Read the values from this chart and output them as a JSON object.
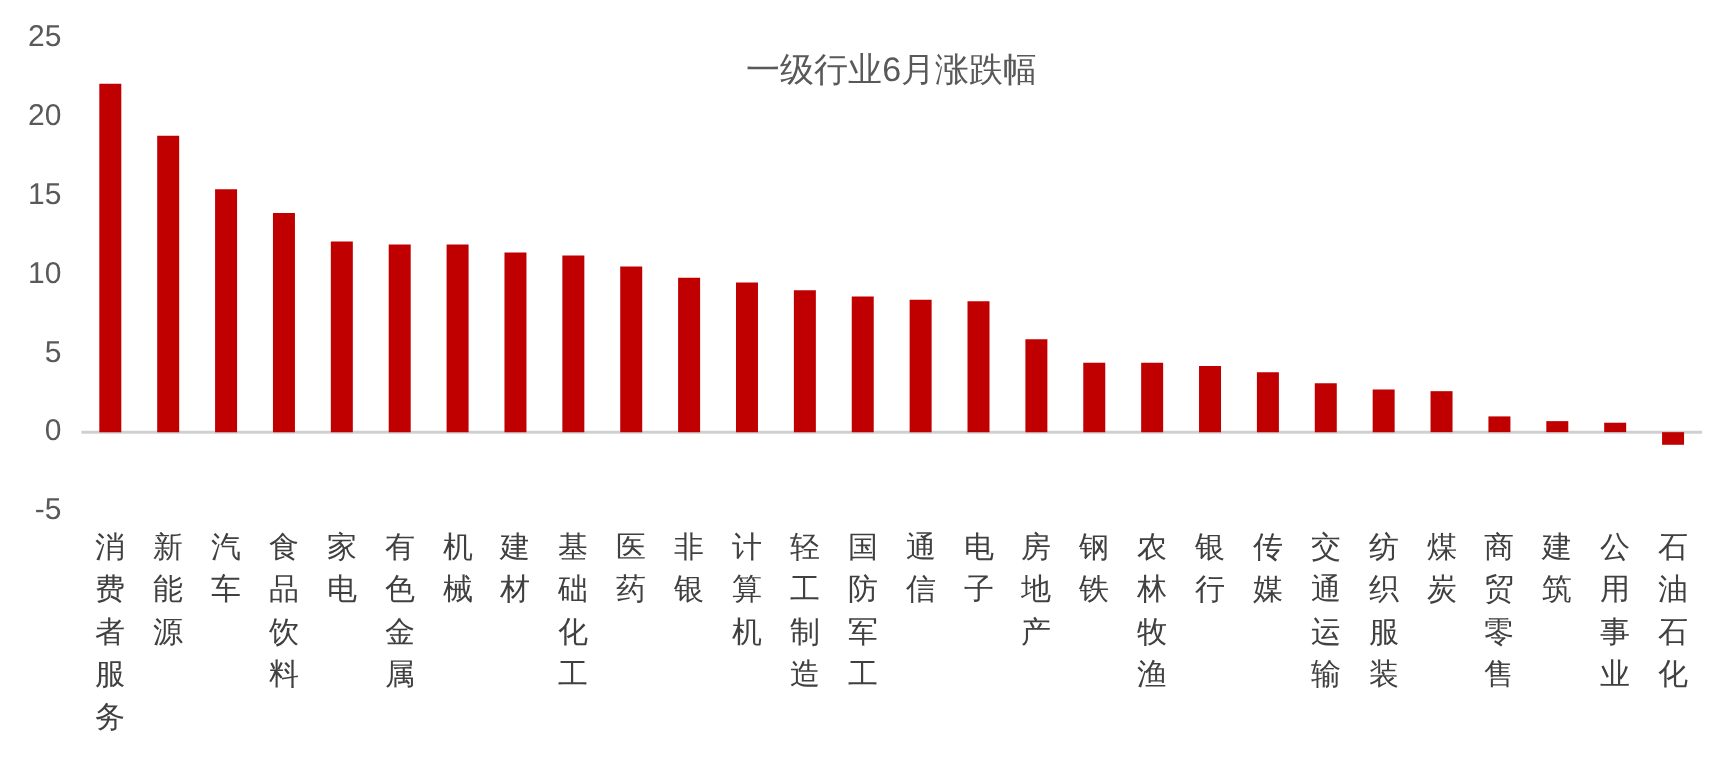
{
  "chart_data": {
    "type": "bar",
    "title": "一级行业6月涨跌幅",
    "categories": [
      "消费者服务",
      "新能源",
      "汽车",
      "食品饮料",
      "家电",
      "有色金属",
      "机械",
      "建材",
      "基础化工",
      "医药",
      "非银",
      "计算机",
      "轻工制造",
      "国防军工",
      "通信",
      "电子",
      "房地产",
      "钢铁",
      "农林牧渔",
      "银行",
      "传媒",
      "交通运输",
      "纺织服装",
      "煤炭",
      "商贸零售",
      "建筑",
      "公用事业",
      "石油石化"
    ],
    "values": [
      22.1,
      18.8,
      15.4,
      13.9,
      12.1,
      11.9,
      11.9,
      11.4,
      11.2,
      10.5,
      9.8,
      9.5,
      9.0,
      8.6,
      8.4,
      8.3,
      5.9,
      4.4,
      4.4,
      4.2,
      3.8,
      3.1,
      2.7,
      2.6,
      1.0,
      0.7,
      0.6,
      -0.8
    ],
    "color": "#c00000",
    "ylim": [
      -5,
      25
    ],
    "yticks": [
      -5,
      0,
      5,
      10,
      15,
      20,
      25
    ],
    "ref_lines": [
      {
        "axis": "y",
        "value": 0,
        "color": "#d0d0d0"
      }
    ],
    "grid": false,
    "legend": false
  }
}
